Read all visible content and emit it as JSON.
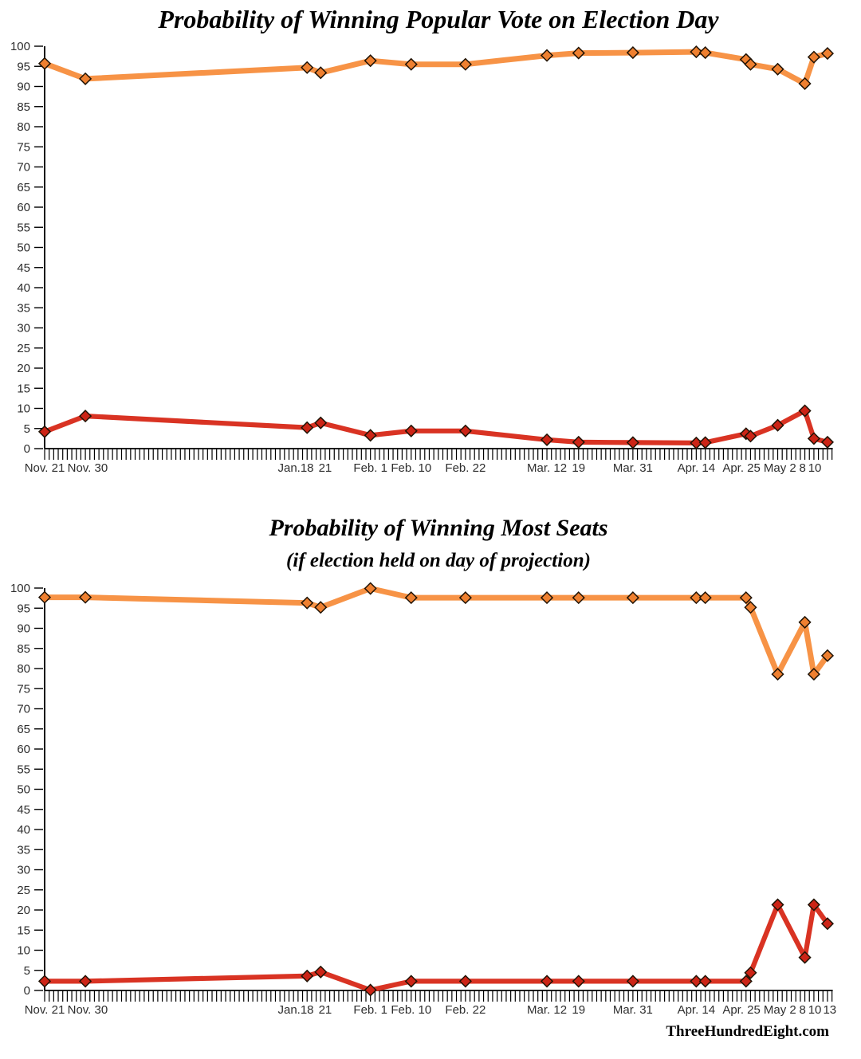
{
  "page": {
    "footer_credit": "ThreeHundredEight.com"
  },
  "colors": {
    "leader_line": "#F79346",
    "leader_marker": "#EF8030",
    "trailer_line": "#D93323",
    "trailer_marker": "#CC2416",
    "marker_outline": "#1F1204",
    "axis": "#000000"
  },
  "chart_data": [
    {
      "type": "line",
      "title": "Probability of Winning Popular Vote on Election Day",
      "subtitle": "",
      "ylim": [
        0,
        100
      ],
      "ytick_step": 5,
      "x_unit": "days since Nov. 21",
      "x_max_day": 173,
      "x_tick_max_day": 174,
      "x_tick_interval_days": 1,
      "point_dates": [
        "Nov. 21",
        "Nov. 30",
        "Jan. 18",
        "Jan. 21",
        "Feb. 1",
        "Feb. 10",
        "Feb. 22",
        "Mar. 12",
        "Mar. 19",
        "Mar. 31",
        "Apr. 14",
        "Apr. 16",
        "Apr. 25",
        "Apr. 26",
        "May 2",
        "May 8",
        "May 10",
        "May 13"
      ],
      "point_days": [
        0,
        9,
        58,
        61,
        72,
        81,
        93,
        111,
        118,
        130,
        144,
        146,
        155,
        156,
        162,
        168,
        170,
        173
      ],
      "series": [
        {
          "name": "leading-party",
          "values": [
            95.7,
            91.9,
            94.7,
            93.4,
            96.4,
            95.5,
            95.5,
            97.7,
            98.3,
            98.4,
            98.6,
            98.4,
            96.7,
            95.5,
            94.3,
            90.7,
            97.3,
            98.2
          ]
        },
        {
          "name": "trailing-party",
          "values": [
            4.2,
            8.1,
            5.2,
            6.4,
            3.3,
            4.4,
            4.4,
            2.2,
            1.6,
            1.5,
            1.4,
            1.5,
            3.7,
            3.1,
            5.8,
            9.4,
            2.5,
            1.6
          ]
        }
      ],
      "x_labels": [
        {
          "day": 0,
          "label": "Nov. 21"
        },
        {
          "day": 9.5,
          "label": "Nov. 30"
        },
        {
          "day": 55.5,
          "label": "Jan.18"
        },
        {
          "day": 62,
          "label": "21"
        },
        {
          "day": 72,
          "label": "Feb. 1"
        },
        {
          "day": 81,
          "label": "Feb. 10"
        },
        {
          "day": 93,
          "label": "Feb. 22"
        },
        {
          "day": 111,
          "label": "Mar. 12"
        },
        {
          "day": 118,
          "label": "19"
        },
        {
          "day": 130,
          "label": "Mar. 31"
        },
        {
          "day": 144,
          "label": "Apr. 14"
        },
        {
          "day": 154,
          "label": "Apr. 25"
        },
        {
          "day": 162.5,
          "label": "May 2"
        },
        {
          "day": 167.5,
          "label": "8"
        },
        {
          "day": 170.2,
          "label": "10"
        }
      ]
    },
    {
      "type": "line",
      "title": "Probability of Winning Most Seats",
      "subtitle": "(if election held on day of projection)",
      "ylim": [
        0,
        100
      ],
      "ytick_step": 5,
      "x_unit": "days since Nov. 21",
      "x_max_day": 173,
      "x_tick_max_day": 174,
      "x_tick_interval_days": 1,
      "point_dates": [
        "Nov. 21",
        "Nov. 30",
        "Jan. 18",
        "Jan. 21",
        "Feb. 1",
        "Feb. 10",
        "Feb. 22",
        "Mar. 12",
        "Mar. 19",
        "Mar. 31",
        "Apr. 14",
        "Apr. 16",
        "Apr. 25",
        "Apr. 26",
        "May 2",
        "May 8",
        "May 10",
        "May 13"
      ],
      "point_days": [
        0,
        9,
        58,
        61,
        72,
        81,
        93,
        111,
        118,
        130,
        144,
        146,
        155,
        156,
        162,
        168,
        170,
        173
      ],
      "series": [
        {
          "name": "leading-party",
          "values": [
            97.7,
            97.7,
            96.3,
            95.2,
            99.9,
            97.6,
            97.6,
            97.6,
            97.6,
            97.6,
            97.6,
            97.6,
            97.6,
            95.2,
            78.6,
            91.5,
            78.6,
            83.2
          ]
        },
        {
          "name": "trailing-party",
          "values": [
            2.3,
            2.3,
            3.6,
            4.6,
            0.1,
            2.3,
            2.3,
            2.3,
            2.3,
            2.3,
            2.3,
            2.3,
            2.3,
            4.4,
            21.3,
            8.2,
            21.3,
            16.6
          ]
        }
      ],
      "x_labels": [
        {
          "day": 0,
          "label": "Nov. 21"
        },
        {
          "day": 9.5,
          "label": "Nov. 30"
        },
        {
          "day": 55.5,
          "label": "Jan.18"
        },
        {
          "day": 62,
          "label": "21"
        },
        {
          "day": 72,
          "label": "Feb. 1"
        },
        {
          "day": 81,
          "label": "Feb. 10"
        },
        {
          "day": 93,
          "label": "Feb. 22"
        },
        {
          "day": 111,
          "label": "Mar. 12"
        },
        {
          "day": 118,
          "label": "19"
        },
        {
          "day": 130,
          "label": "Mar. 31"
        },
        {
          "day": 144,
          "label": "Apr. 14"
        },
        {
          "day": 154,
          "label": "Apr. 25"
        },
        {
          "day": 162.5,
          "label": "May 2"
        },
        {
          "day": 167.5,
          "label": "8"
        },
        {
          "day": 170.2,
          "label": "10"
        },
        {
          "day": 173.5,
          "label": "13"
        }
      ]
    }
  ]
}
